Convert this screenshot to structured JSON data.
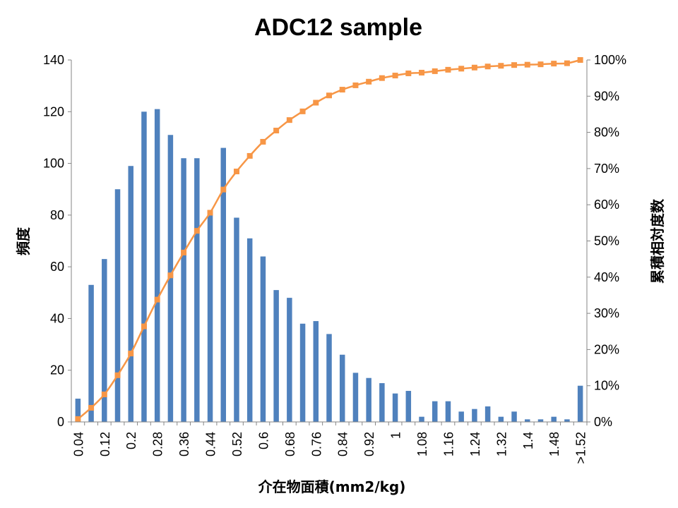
{
  "chart_data": {
    "type": "bar+line",
    "title": "ADC12 sample",
    "xlabel": "介在物面積(mm2/kg)",
    "ylabel": "頻度",
    "y2label": "累積相対度数",
    "ylim": [
      0,
      140
    ],
    "y2lim": [
      0,
      100
    ],
    "yticks": [
      "0",
      "20",
      "40",
      "60",
      "80",
      "100",
      "120",
      "140"
    ],
    "y2ticks": [
      "0%",
      "10%",
      "20%",
      "30%",
      "40%",
      "50%",
      "60%",
      "70%",
      "80%",
      "90%",
      "100%"
    ],
    "categories": [
      "0.04",
      "0.08",
      "0.12",
      "0.16",
      "0.2",
      "0.24",
      "0.28",
      "0.32",
      "0.36",
      "0.4",
      "0.44",
      "0.48",
      "0.52",
      "0.56",
      "0.6",
      "0.64",
      "0.68",
      "0.72",
      "0.76",
      "0.8",
      "0.84",
      "0.88",
      "0.92",
      "0.96",
      "1",
      "1.04",
      "1.08",
      "1.12",
      "1.16",
      "1.2",
      "1.24",
      "1.28",
      "1.32",
      "1.36",
      "1.4",
      "1.44",
      "1.48",
      "1.52",
      ">1.52"
    ],
    "shown_tick_labels": [
      "0.04",
      "0.12",
      "0.2",
      "0.28",
      "0.36",
      "0.44",
      "0.52",
      "0.6",
      "0.68",
      "0.76",
      "0.84",
      "0.92",
      "1",
      "1.08",
      "1.16",
      "1.24",
      "1.32",
      "1.4",
      "1.48",
      ">1.52"
    ],
    "series": [
      {
        "name": "頻度",
        "type": "bar",
        "color": "#4f81bd",
        "values": [
          9,
          53,
          63,
          90,
          99,
          120,
          121,
          111,
          102,
          102,
          80,
          106,
          79,
          71,
          64,
          51,
          48,
          38,
          39,
          34,
          26,
          19,
          17,
          15,
          11,
          12,
          2,
          8,
          8,
          4,
          5,
          6,
          2,
          4,
          1,
          1,
          2,
          1,
          14
        ]
      },
      {
        "name": "累積相対度数",
        "type": "line",
        "axis": "right",
        "color": "#f79646",
        "values": [
          0.8,
          3.9,
          7.6,
          12.9,
          18.9,
          26.4,
          33.8,
          40.5,
          46.8,
          52.8,
          57.8,
          64.2,
          69.2,
          73.5,
          77.4,
          80.5,
          83.4,
          85.8,
          88.2,
          90.2,
          91.8,
          93.0,
          94.0,
          95.0,
          95.7,
          96.3,
          96.5,
          96.9,
          97.3,
          97.6,
          97.9,
          98.2,
          98.4,
          98.6,
          98.7,
          98.8,
          99.0,
          99.1,
          100.0
        ]
      }
    ],
    "grid": false,
    "legend": "none"
  }
}
